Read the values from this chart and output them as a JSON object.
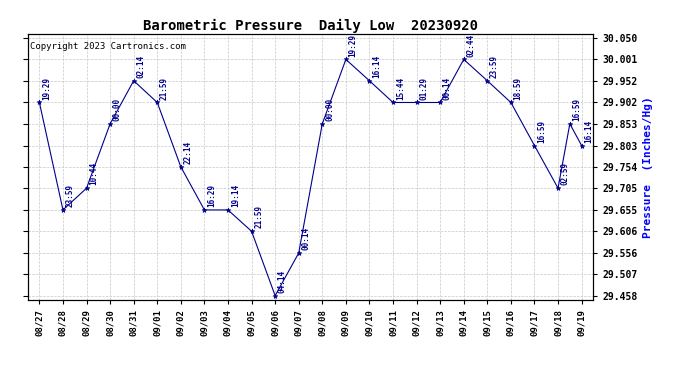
{
  "title": "Barometric Pressure  Daily Low  20230920",
  "ylabel": "Pressure  (Inches/Hg)",
  "copyright": "Copyright 2023 Cartronics.com",
  "background_color": "#ffffff",
  "plot_bg_color": "#ffffff",
  "line_color": "#00008B",
  "marker_color": "#00008B",
  "grid_color": "#c8c8c8",
  "ylim_min": 29.448,
  "ylim_max": 30.06,
  "yticks": [
    30.05,
    30.001,
    29.952,
    29.902,
    29.853,
    29.803,
    29.754,
    29.705,
    29.655,
    29.606,
    29.556,
    29.507,
    29.458
  ],
  "x_labels": [
    "08/27",
    "08/28",
    "08/29",
    "08/30",
    "08/31",
    "09/01",
    "09/02",
    "09/03",
    "09/04",
    "09/05",
    "09/06",
    "09/07",
    "09/08",
    "09/09",
    "09/10",
    "09/11",
    "09/12",
    "09/13",
    "09/14",
    "09/15",
    "09/16",
    "09/17",
    "09/18",
    "09/19"
  ],
  "point_data": [
    [
      0,
      29.902,
      "19:29"
    ],
    [
      1,
      29.655,
      "23:59"
    ],
    [
      2,
      29.705,
      "10:44"
    ],
    [
      3,
      29.853,
      "00:00"
    ],
    [
      4,
      29.952,
      "02:14"
    ],
    [
      5,
      29.902,
      "21:59"
    ],
    [
      6,
      29.754,
      "22:14"
    ],
    [
      7,
      29.655,
      "16:29"
    ],
    [
      8,
      29.655,
      "19:14"
    ],
    [
      9,
      29.606,
      "21:59"
    ],
    [
      10,
      29.458,
      "04:14"
    ],
    [
      11,
      29.556,
      "00:14"
    ],
    [
      12,
      29.853,
      "00:00"
    ],
    [
      13,
      30.001,
      "19:29"
    ],
    [
      14,
      29.952,
      "16:14"
    ],
    [
      15,
      29.902,
      "15:44"
    ],
    [
      16,
      29.902,
      "01:29"
    ],
    [
      17,
      29.902,
      "00:14"
    ],
    [
      18,
      30.001,
      "02:44"
    ],
    [
      19,
      29.952,
      "23:59"
    ],
    [
      20,
      29.902,
      "18:59"
    ],
    [
      21,
      29.803,
      "16:59"
    ],
    [
      22,
      29.705,
      "02:59"
    ],
    [
      22.5,
      29.853,
      "16:59"
    ],
    [
      23,
      29.803,
      "16:14"
    ]
  ]
}
